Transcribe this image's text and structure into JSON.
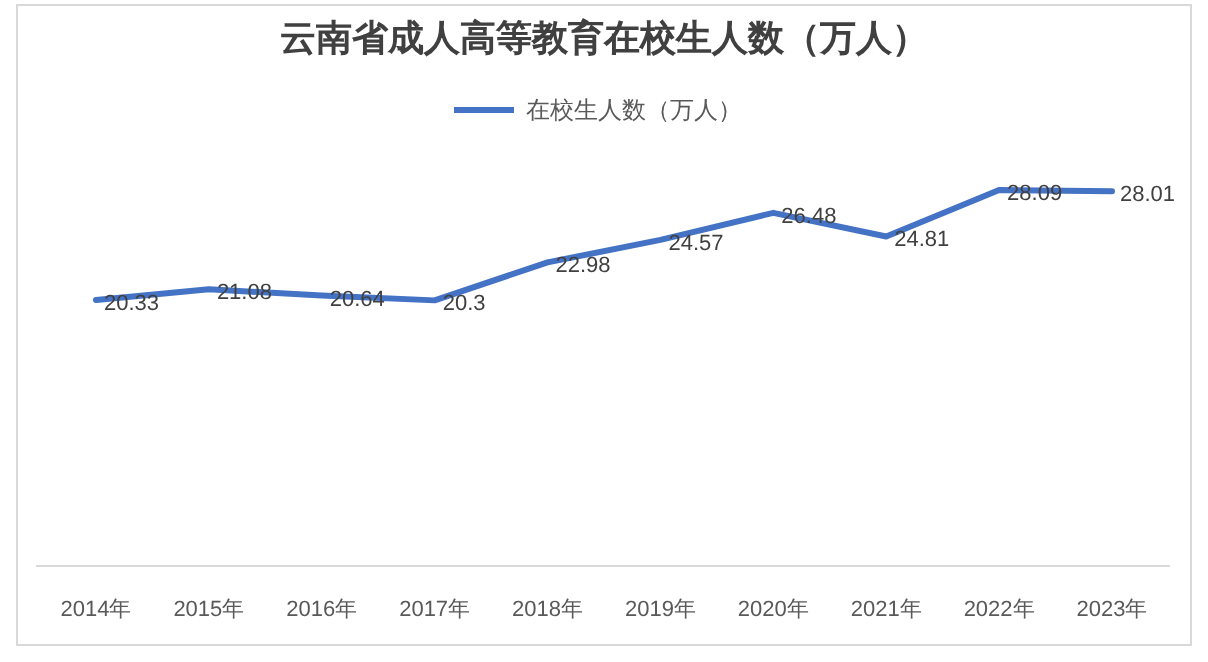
{
  "chart_data": {
    "type": "line",
    "title": "云南省成人高等教育在校生人数（万人）",
    "categories": [
      "2014年",
      "2015年",
      "2016年",
      "2017年",
      "2018年",
      "2019年",
      "2020年",
      "2021年",
      "2022年",
      "2023年"
    ],
    "series": [
      {
        "name": "在校生人数（万人）",
        "color": "#4472c4",
        "values": [
          20.33,
          21.08,
          20.64,
          20.3,
          22.98,
          24.57,
          26.48,
          24.81,
          28.09,
          28.01
        ]
      }
    ],
    "data_labels": true,
    "legend": "top",
    "marker": "none",
    "line_style": "solid",
    "grid": false
  }
}
